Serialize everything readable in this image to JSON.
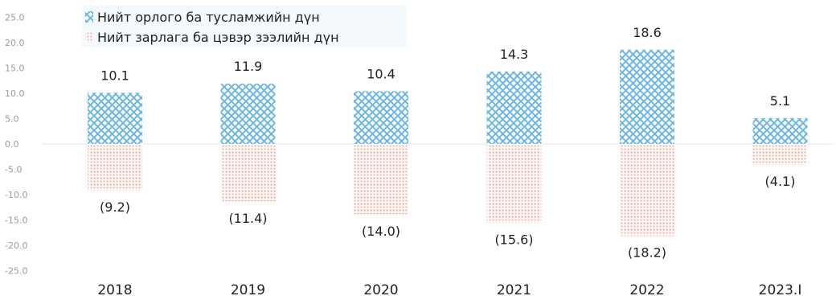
{
  "chart_data": {
    "type": "bar",
    "stacked": true,
    "categories": [
      "2018",
      "2019",
      "2020",
      "2021",
      "2022",
      "2023.I"
    ],
    "series": [
      {
        "name": "Нийт орлого ба тусламжийн дүн",
        "values": [
          10.1,
          11.9,
          10.4,
          14.3,
          18.6,
          5.1
        ],
        "labels": [
          "10.1",
          "11.9",
          "10.4",
          "14.3",
          "18.6",
          "5.1"
        ],
        "color": "#6bb6e3",
        "pattern": "diagonal-crosshatch"
      },
      {
        "name": "Нийт зарлага ба цэвэр зээлийн дүн",
        "values": [
          -9.2,
          -11.4,
          -14.0,
          -15.6,
          -18.2,
          -4.1
        ],
        "labels": [
          "(9.2)",
          "(11.4)",
          "(14.0)",
          "(15.6)",
          "(18.2)",
          "(4.1)"
        ],
        "color": "#f2a08c",
        "pattern": "dots"
      }
    ],
    "y_ticks": [
      "25.0",
      "20.0",
      "15.0",
      "10.0",
      "5.0",
      "0.0",
      "-5.0",
      "-10.0",
      "-15.0",
      "-20.0",
      "-25.0"
    ],
    "ylim": [
      -25,
      25
    ],
    "grid": false,
    "legend_position": "top-left",
    "title": "",
    "xlabel": "",
    "ylabel": ""
  }
}
